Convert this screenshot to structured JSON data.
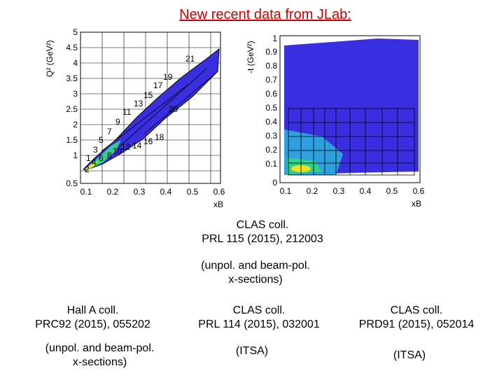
{
  "title": "New recent data from JLab:",
  "left_plot": {
    "ylabel": "Q² (GeV²)",
    "xlabel": "xB",
    "yticks": [
      "5",
      "4.5",
      "4",
      "3.5",
      "3",
      "2.5",
      "2",
      "1.5",
      "1",
      "0.5"
    ],
    "xticks": [
      "0.1",
      "0.2",
      "0.3",
      "0.4",
      "0.5",
      "0.6"
    ],
    "bin_labels": [
      "21",
      "19",
      "17",
      "15",
      "13",
      "11",
      "9",
      "7",
      "5",
      "3",
      "1",
      "20",
      "18",
      "16",
      "14",
      "12",
      "10",
      "8",
      "6",
      "4",
      "2"
    ]
  },
  "right_plot": {
    "ylabel": "-t (GeV²)",
    "xlabel": "xB",
    "yticks": [
      "1",
      "0.9",
      "0.8",
      "0.7",
      "0.6",
      "0.5",
      "0.4",
      "0.3",
      "0.2",
      "0.1",
      "0"
    ],
    "xticks": [
      "0.1",
      "0.2",
      "0.3",
      "0.4",
      "0.5",
      "0.6"
    ]
  },
  "captions": {
    "clas_top": [
      "CLAS coll.",
      "PRL 115 (2015), 212003"
    ],
    "clas_top_note": [
      "(unpol. and beam-pol.",
      "x-sections)"
    ],
    "halla": [
      "Hall A coll.",
      "PRC92 (2015), 055202"
    ],
    "halla_note": [
      "(unpol. and beam-pol.",
      "x-sections)"
    ],
    "clas_mid": [
      "CLAS coll.",
      "PRL 114 (2015), 032001"
    ],
    "clas_mid_note": "(ITSA)",
    "clas_right": [
      "CLAS coll.",
      "PRD91 (2015), 052014"
    ],
    "clas_right_note": "(ITSA)"
  },
  "colors": {
    "title": "#cc0000",
    "hist_main": "#3a2fe0",
    "hist_high": "#2fd08a",
    "hist_peak": "#f0e020"
  }
}
